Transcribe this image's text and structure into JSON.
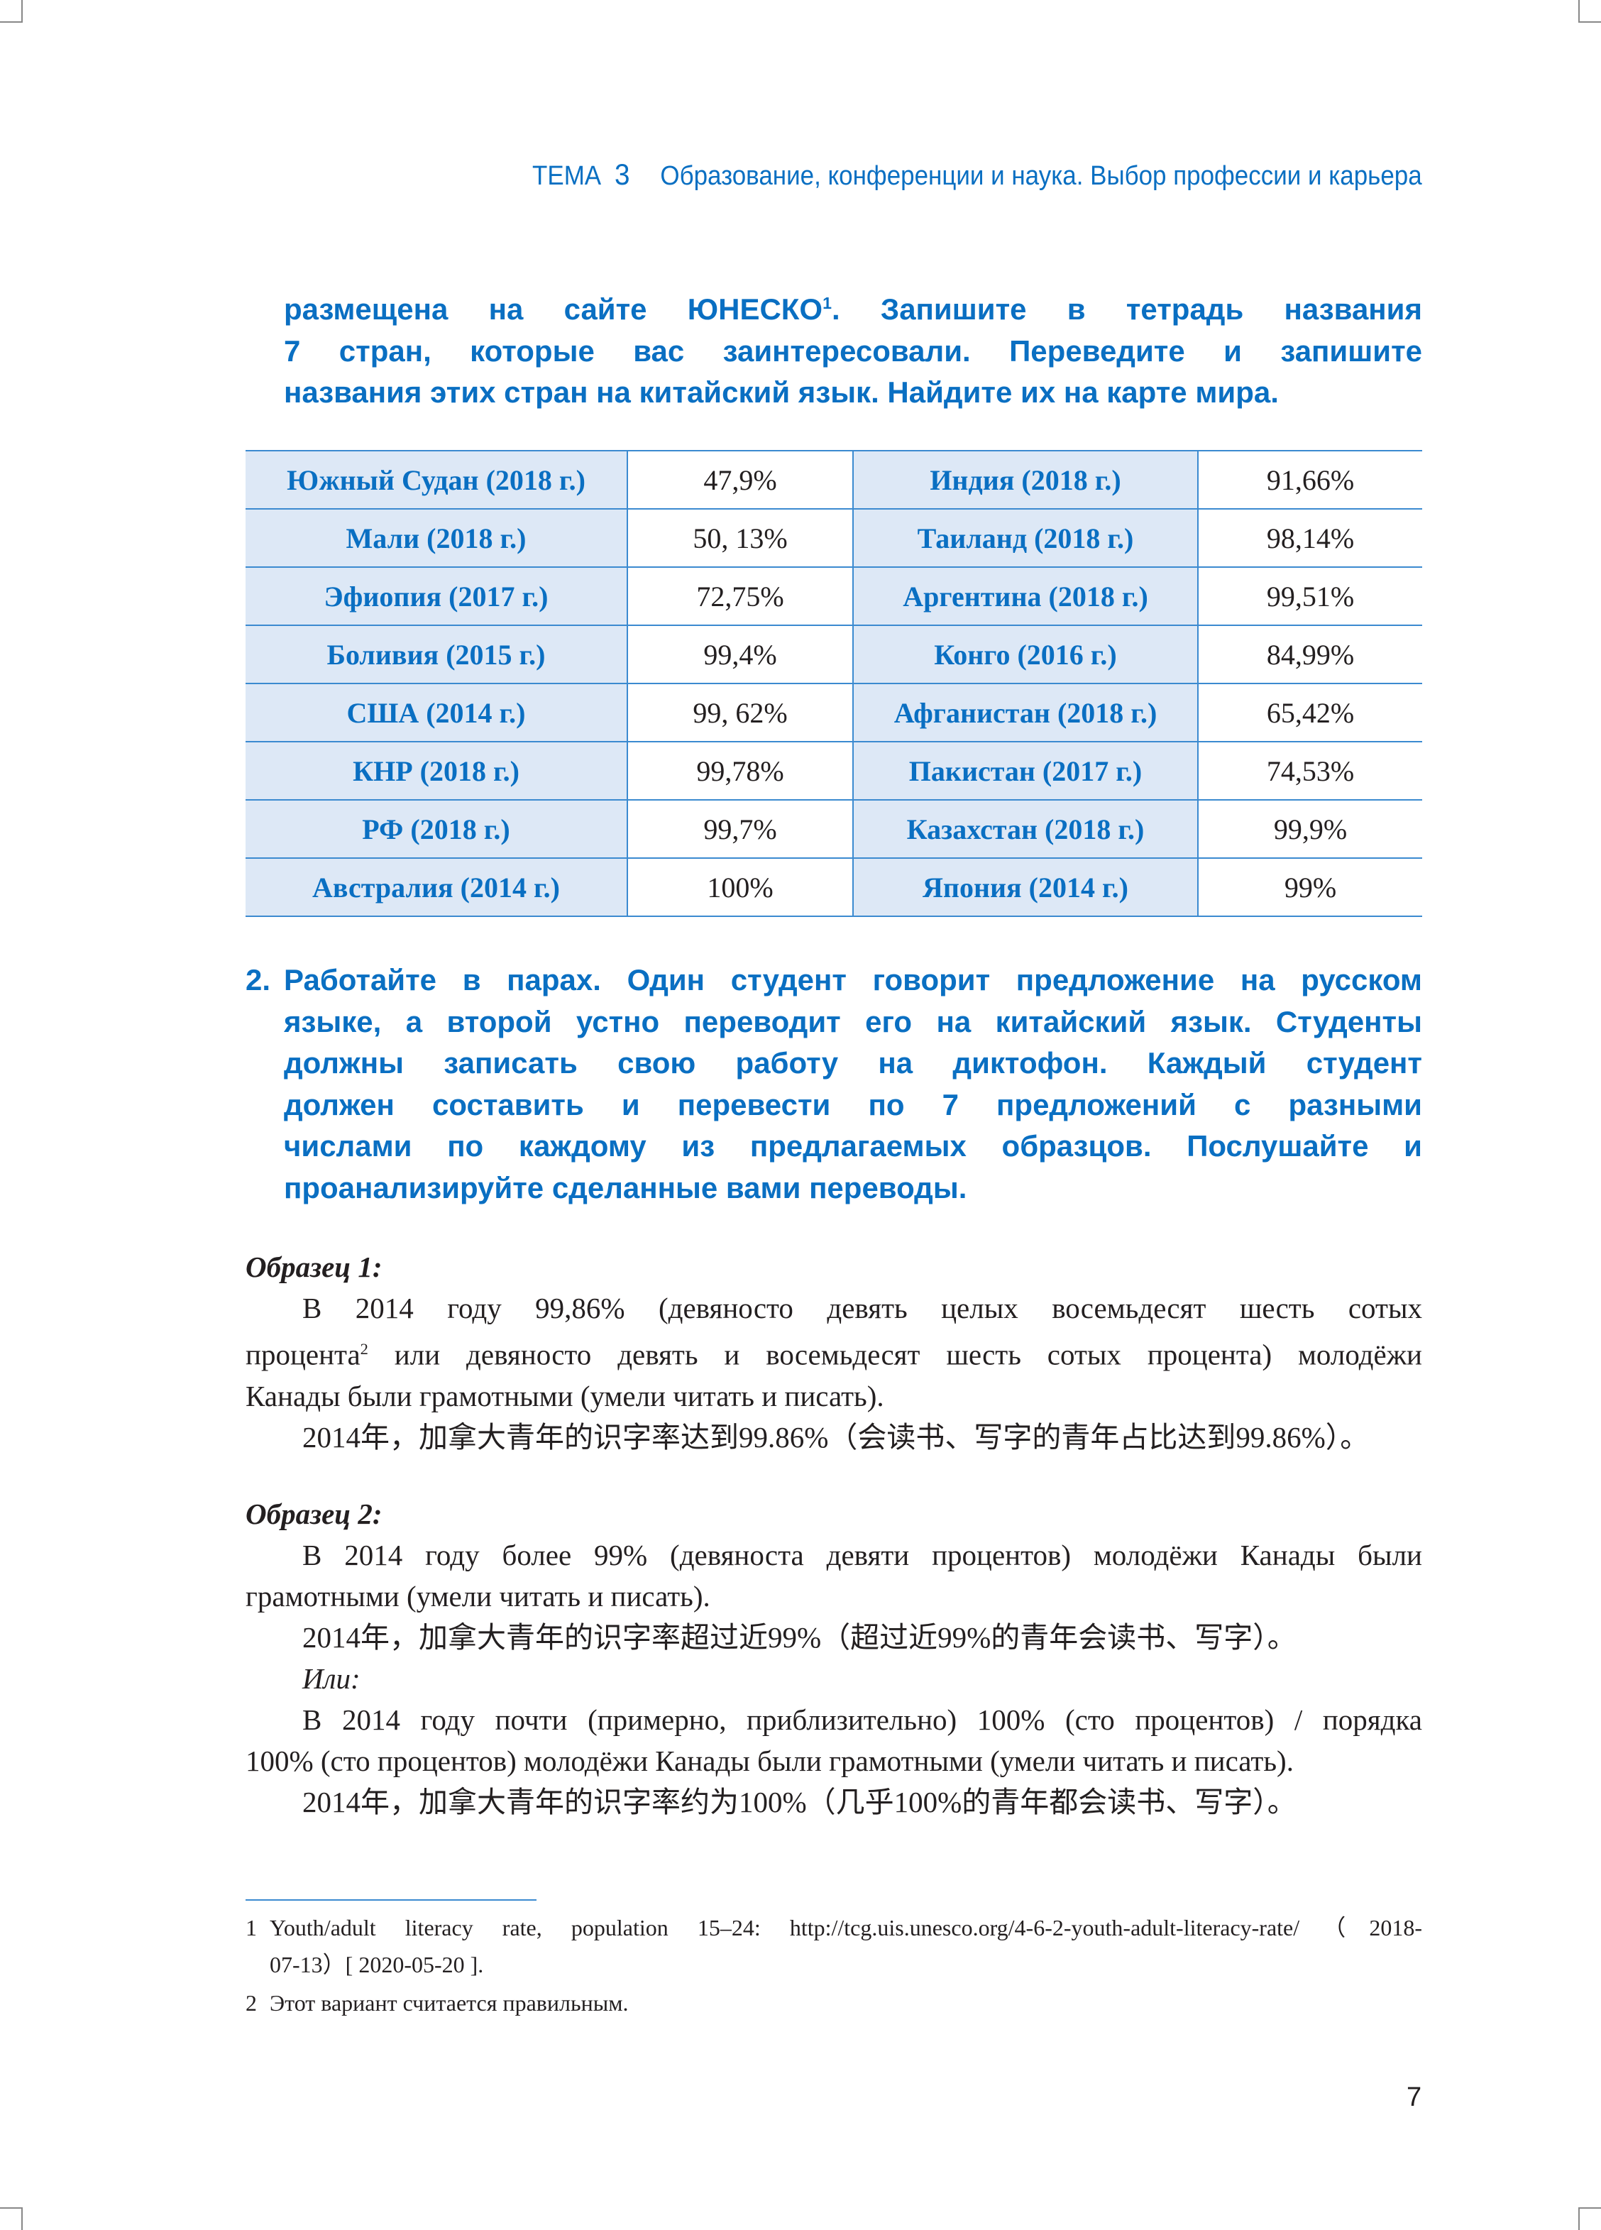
{
  "header": {
    "topic_label": "ТЕМА",
    "topic_number": "3",
    "topic_title": "Образование, конференции и наука. Выбор профессии и карьера"
  },
  "intro": {
    "lines": [
      "размещена на сайте ЮНЕСКО",
      ". Запишите в тетрадь названия",
      "7 стран, которые вас заинтересовали. Переведите и запишите",
      "названия этих стран на китайский язык. Найдите их на карте мира."
    ],
    "footnote_ref": "1"
  },
  "table": {
    "rows": [
      [
        "Южный Судан (2018 г.)",
        "47,9%",
        "Индия (2018 г.)",
        "91,66%"
      ],
      [
        "Мали (2018 г.)",
        "50, 13%",
        "Таиланд (2018 г.)",
        "98,14%"
      ],
      [
        "Эфиопия (2017 г.)",
        "72,75%",
        "Аргентина (2018 г.)",
        "99,51%"
      ],
      [
        "Боливия (2015 г.)",
        "99,4%",
        "Конго (2016 г.)",
        "84,99%"
      ],
      [
        "США (2014 г.)",
        "99, 62%",
        "Афганистан (2018 г.)",
        "65,42%"
      ],
      [
        "КНР (2018 г.)",
        "99,78%",
        "Пакистан (2017 г.)",
        "74,53%"
      ],
      [
        "РФ (2018 г.)",
        "99,7%",
        "Казахстан (2018 г.)",
        "99,9%"
      ],
      [
        "Австралия (2014 г.)",
        "100%",
        "Япония (2014 г.)",
        "99%"
      ]
    ]
  },
  "task2": {
    "number": "2.",
    "lines": [
      "Работайте в парах. Один студент говорит предложение на русском",
      "языке, а второй устно переводит его на китайский язык. Студенты",
      "должны записать свою работу на диктофон. Каждый студент",
      "должен составить и перевести по 7 предложений с разными",
      "числами по каждому из предлагаемых образцов. Послушайте и",
      "проанализируйте сделанные вами переводы."
    ]
  },
  "sample1": {
    "heading": "Образец 1:",
    "ru_line1": "В 2014 году 99,86% (девяносто девять целых восемьдесят шесть сотых",
    "ru_line2a": "процента",
    "ru_fn": "2",
    "ru_line2b": " или девяносто девять и восемьдесят шесть сотых процента) молодёжи",
    "ru_line3": "Канады были грамотными (умели читать и писать).",
    "zh": "2014年，加拿大青年的识字率达到99.86%（会读书、写字的青年占比达到99.86%）。"
  },
  "sample2": {
    "heading": "Образец 2:",
    "ru1_line1": "В 2014 году более 99% (девяноста девяти процентов) молодёжи Канады были",
    "ru1_line2": "грамотными (умели читать и писать).",
    "zh1": "2014年，加拿大青年的识字率超过近99%（超过近99%的青年会读书、写字）。",
    "or": "Или:",
    "ru2_line1": "В 2014 году почти (примерно, приблизительно) 100% (сто процентов) / порядка",
    "ru2_line2": "100% (сто процентов) молодёжи Канады были грамотными (умели читать и писать).",
    "zh2": "2014年，加拿大青年的识字率约为100%（几乎100%的青年都会读书、写字）。"
  },
  "footnotes": [
    {
      "n": "1",
      "line1": "Youth/adult literacy rate, population 15–24: http://tcg.uis.unesco.org/4-6-2-youth-adult-literacy-rate/（2018-",
      "line2": "07-13）[ 2020-05-20 ]."
    },
    {
      "n": "2",
      "line1": "Этот вариант считается правильным."
    }
  ],
  "page_number": "7",
  "colors": {
    "accent": "#0a6fc2",
    "table_label_bg": "#dde8f6",
    "table_border": "#3b8ad0"
  }
}
